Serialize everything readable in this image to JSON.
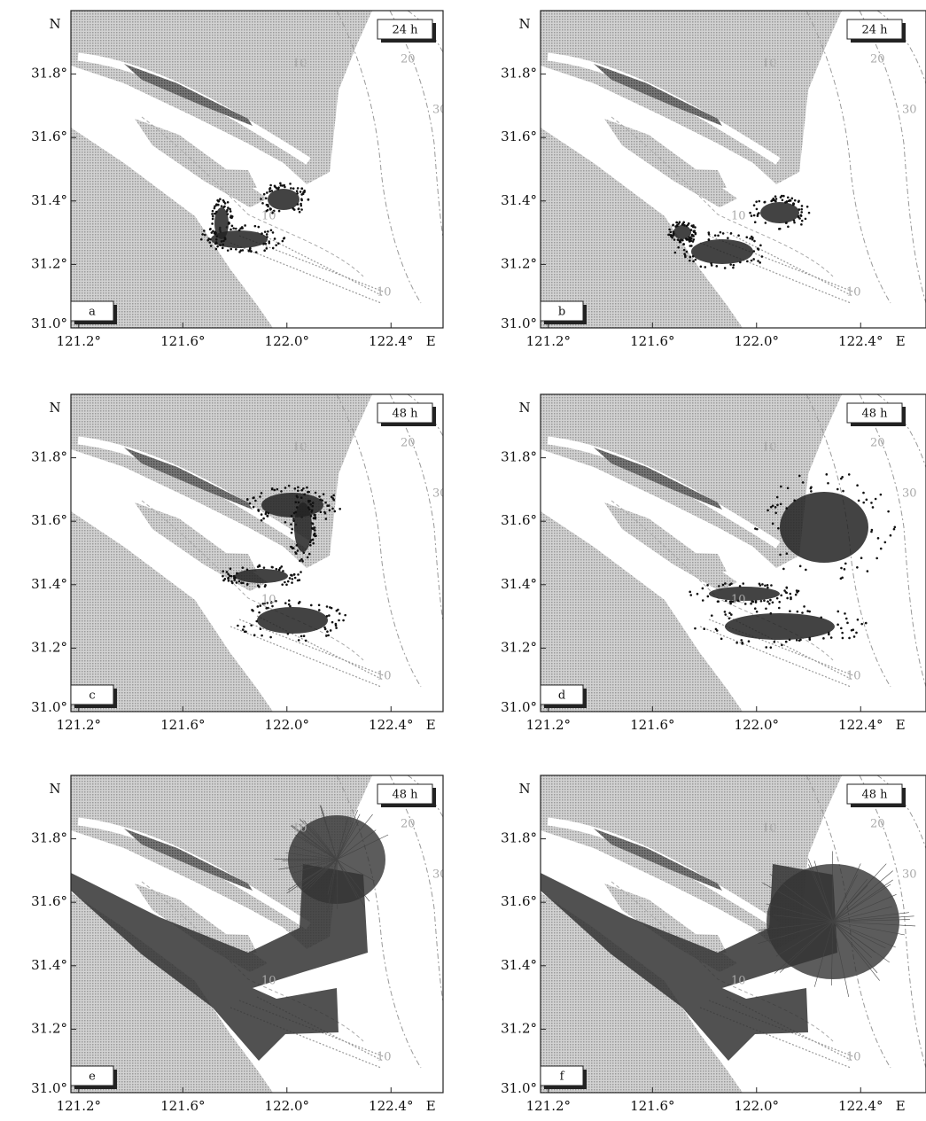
{
  "axis": {
    "north": "N",
    "east": "E",
    "xlim": [
      121.17,
      122.6
    ],
    "ylim": [
      31.0,
      32.0
    ],
    "xticks": [
      {
        "value": 121.2,
        "label": "121.2°"
      },
      {
        "value": 121.6,
        "label": "121.6°"
      },
      {
        "value": 122.0,
        "label": "122.0°"
      },
      {
        "value": 122.4,
        "label": "122.4°"
      }
    ],
    "yticks": [
      {
        "value": 31.0,
        "label": "31.0°"
      },
      {
        "value": 31.2,
        "label": "31.2°"
      },
      {
        "value": 31.4,
        "label": "31.4°"
      },
      {
        "value": 31.6,
        "label": "31.6°"
      },
      {
        "value": 31.8,
        "label": "31.8°"
      }
    ]
  },
  "contour_labels": [
    "10",
    "20",
    "30"
  ],
  "panels": [
    {
      "label": "a",
      "time": "24 h"
    },
    {
      "label": "b",
      "time": "24 h"
    },
    {
      "label": "c",
      "time": "48 h"
    },
    {
      "label": "d",
      "time": "48 h"
    },
    {
      "label": "e",
      "time": "48 h"
    },
    {
      "label": "f",
      "time": "48 h"
    }
  ]
}
